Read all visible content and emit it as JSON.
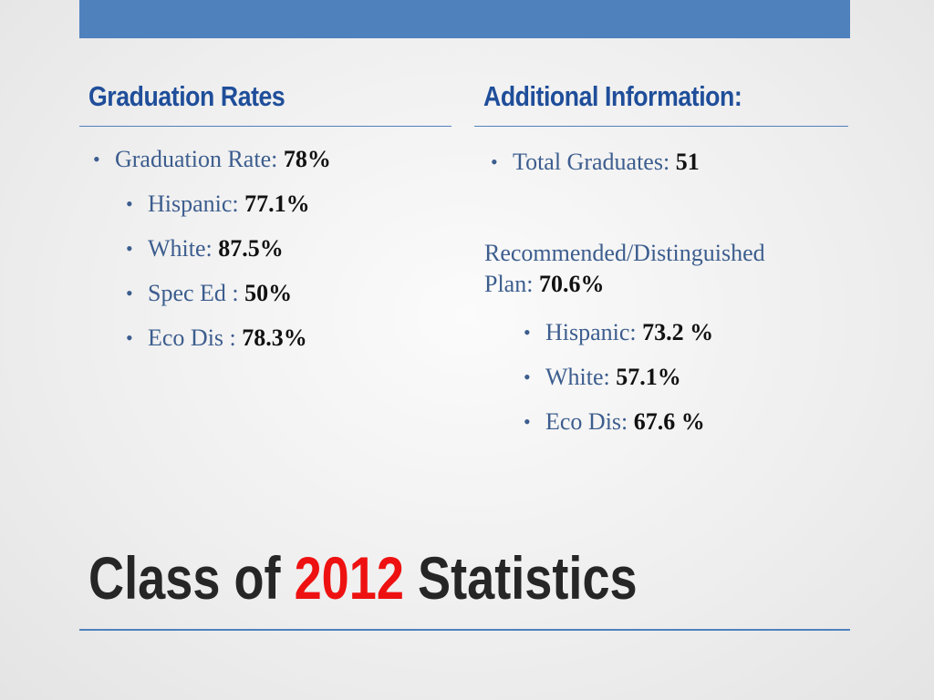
{
  "left": {
    "heading": "Graduation Rates",
    "items": [
      {
        "label": "Graduation Rate: ",
        "value": "78%"
      },
      {
        "label": "Hispanic: ",
        "value": "77.1%"
      },
      {
        "label": "White: ",
        "value": "87.5%"
      },
      {
        "label": "Spec Ed : ",
        "value": "50%"
      },
      {
        "label": "Eco Dis : ",
        "value": "78.3%"
      }
    ]
  },
  "right": {
    "heading": "Additional Information:",
    "total": {
      "label": "Total Graduates: ",
      "value": "51"
    },
    "plan": {
      "line1": "Recommended/Distinguished",
      "line2": "Plan: ",
      "value": "70.6%"
    },
    "items": [
      {
        "label": "Hispanic: ",
        "value": "73.2 %"
      },
      {
        "label": "White: ",
        "value": "57.1%"
      },
      {
        "label": "Eco Dis: ",
        "value": "67.6 %"
      }
    ]
  },
  "title": {
    "before": "Class of ",
    "accent": "2012",
    "after": " Statistics"
  },
  "colors": {
    "accent_bar": "#4f81bd",
    "heading": "#1f4e9a",
    "body_text": "#3c5d8e",
    "title_year": "#ee1111"
  }
}
